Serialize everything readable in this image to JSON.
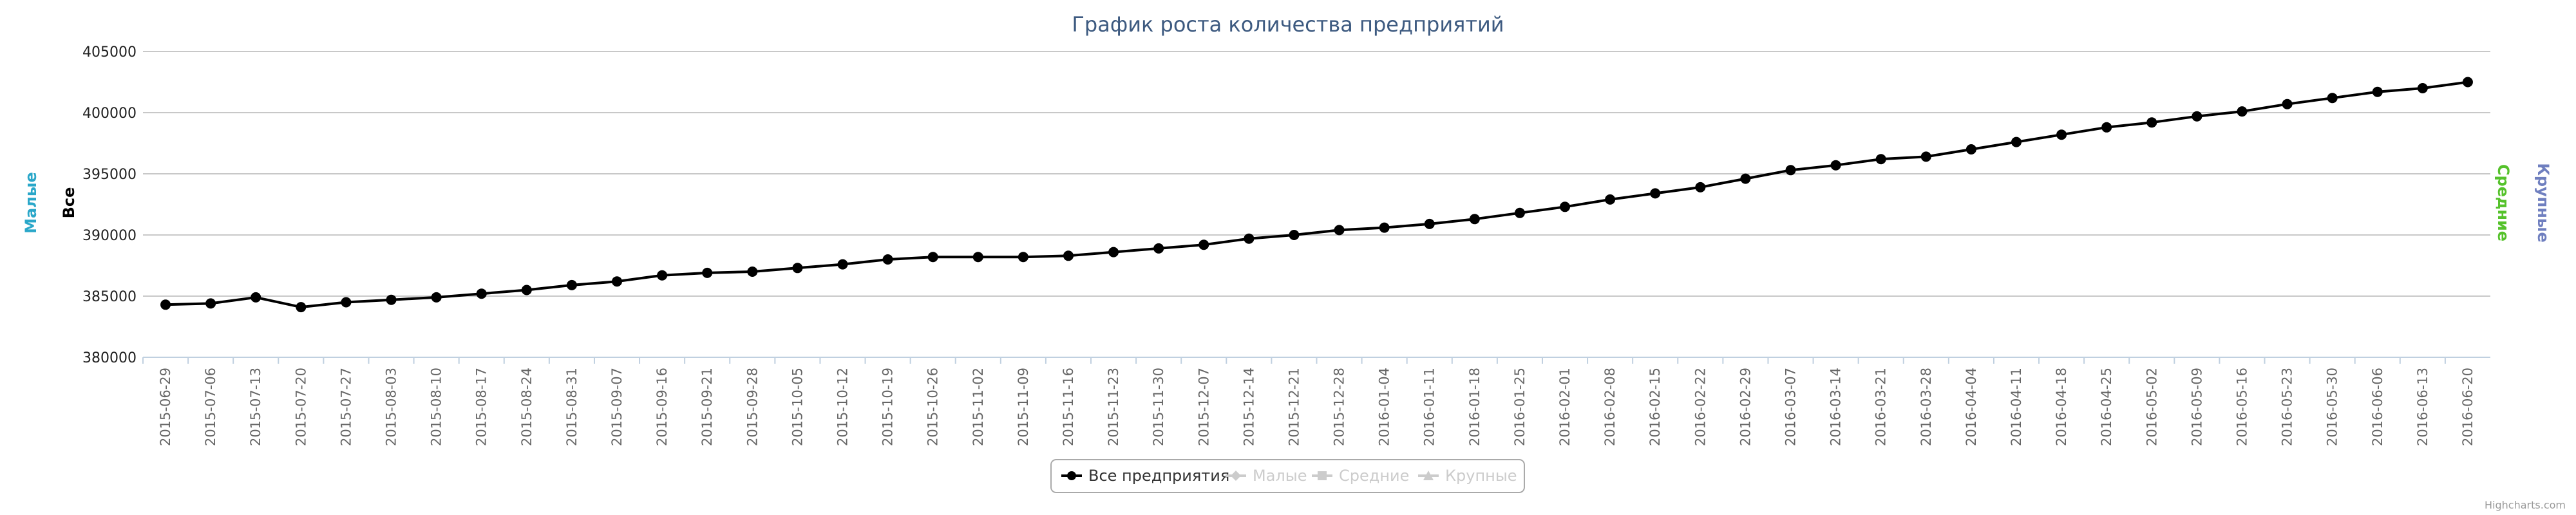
{
  "chart_data": {
    "type": "line",
    "title": "График роста количества предприятий",
    "y_axes": [
      {
        "label": "Малые",
        "color": "#2aa7c9",
        "side": "left"
      },
      {
        "label": "Все",
        "color": "#000000",
        "side": "left"
      },
      {
        "label": "Средние",
        "color": "#55c22b",
        "side": "right"
      },
      {
        "label": "Крупные",
        "color": "#6f7fbf",
        "side": "right"
      }
    ],
    "ylim": [
      380000,
      405000
    ],
    "yticks": [
      "380000",
      "385000",
      "390000",
      "395000",
      "400000",
      "405000"
    ],
    "grid": true,
    "legend_placement": "bottom-center",
    "categories": [
      "2015-06-29",
      "2015-07-06",
      "2015-07-13",
      "2015-07-20",
      "2015-07-27",
      "2015-08-03",
      "2015-08-10",
      "2015-08-17",
      "2015-08-24",
      "2015-08-31",
      "2015-09-07",
      "2015-09-16",
      "2015-09-21",
      "2015-09-28",
      "2015-10-05",
      "2015-10-12",
      "2015-10-19",
      "2015-10-26",
      "2015-11-02",
      "2015-11-09",
      "2015-11-16",
      "2015-11-23",
      "2015-11-30",
      "2015-12-07",
      "2015-12-14",
      "2015-12-21",
      "2015-12-28",
      "2016-01-04",
      "2016-01-11",
      "2016-01-18",
      "2016-01-25",
      "2016-02-01",
      "2016-02-08",
      "2016-02-15",
      "2016-02-22",
      "2016-02-29",
      "2016-03-07",
      "2016-03-14",
      "2016-03-21",
      "2016-03-28",
      "2016-04-04",
      "2016-04-11",
      "2016-04-18",
      "2016-04-25",
      "2016-05-02",
      "2016-05-09",
      "2016-05-16",
      "2016-05-23",
      "2016-05-30",
      "2016-06-06",
      "2016-06-13",
      "2016-06-20"
    ],
    "series": [
      {
        "name": "Все предприятия",
        "color": "#000000",
        "visible": true,
        "marker": "circle",
        "values": [
          384300,
          384400,
          384900,
          384100,
          384500,
          384700,
          384900,
          385200,
          385500,
          385900,
          386200,
          386700,
          386900,
          387000,
          387300,
          387600,
          388000,
          388200,
          388200,
          388200,
          388300,
          388600,
          388900,
          389200,
          389700,
          390000,
          390400,
          390600,
          390900,
          391300,
          391800,
          392300,
          392900,
          393400,
          393900,
          394600,
          395300,
          395700,
          396200,
          396400,
          397000,
          397600,
          398200,
          398800,
          399200,
          399700,
          400100,
          400700,
          401200,
          401700,
          402000,
          402500
        ]
      },
      {
        "name": "Малые",
        "color": "#cccccc",
        "visible": false,
        "marker": "diamond"
      },
      {
        "name": "Средние",
        "color": "#cccccc",
        "visible": false,
        "marker": "square"
      },
      {
        "name": "Крупные",
        "color": "#cccccc",
        "visible": false,
        "marker": "triangle"
      }
    ]
  },
  "credits": "Highcharts.com"
}
